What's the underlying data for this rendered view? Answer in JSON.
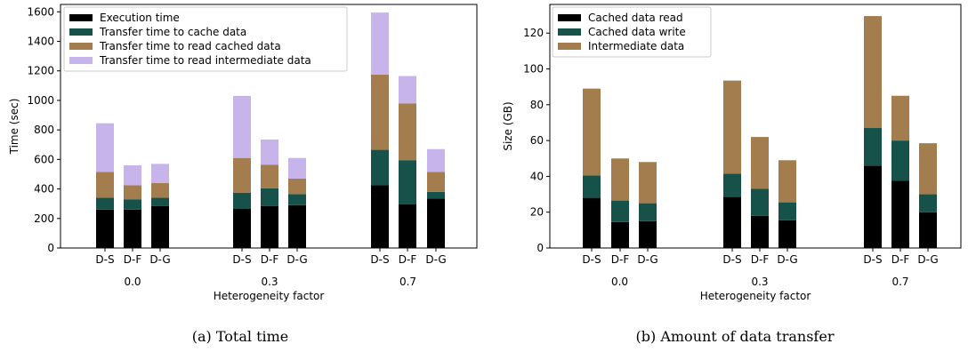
{
  "colors": {
    "execution": "#000000",
    "transfer_cache": "#16524a",
    "transfer_read_cached": "#a47d4f",
    "transfer_read_intermediate": "#c7b4ea",
    "cached_read": "#000000",
    "cached_write": "#16524a",
    "intermediate": "#a47d4f"
  },
  "chart_data": [
    {
      "type": "bar",
      "stacked": true,
      "caption": "(a) Total time",
      "xlabel": "Heterogeneity factor",
      "ylabel": "Time (sec)",
      "ylim": [
        0,
        1650
      ],
      "yticks": [
        0,
        200,
        400,
        600,
        800,
        1000,
        1200,
        1400,
        1600
      ],
      "groups": [
        "0.0",
        "0.3",
        "0.7"
      ],
      "bar_labels": [
        "D-S",
        "D-F",
        "D-G"
      ],
      "legend_position": "top-left",
      "series": [
        {
          "name": "Execution time",
          "color_key": "execution",
          "values": [
            [
              260,
              260,
              285
            ],
            [
              265,
              285,
              290
            ],
            [
              425,
              295,
              335
            ]
          ]
        },
        {
          "name": "Transfer time to cache data",
          "color_key": "transfer_cache",
          "values": [
            [
              80,
              70,
              55
            ],
            [
              110,
              120,
              75
            ],
            [
              240,
              300,
              45
            ]
          ]
        },
        {
          "name": "Transfer time to read cached data",
          "color_key": "transfer_read_cached",
          "values": [
            [
              175,
              95,
              100
            ],
            [
              235,
              160,
              105
            ],
            [
              510,
              385,
              135
            ]
          ]
        },
        {
          "name": "Transfer time to read intermediate data",
          "color_key": "transfer_read_intermediate",
          "values": [
            [
              330,
              135,
              130
            ],
            [
              420,
              170,
              140
            ],
            [
              420,
              185,
              155
            ]
          ]
        }
      ]
    },
    {
      "type": "bar",
      "stacked": true,
      "caption": "(b) Amount of data transfer",
      "xlabel": "Heterogeneity factor",
      "ylabel": "Size (GB)",
      "ylim": [
        0,
        136
      ],
      "yticks": [
        0,
        20,
        40,
        60,
        80,
        100,
        120
      ],
      "groups": [
        "0.0",
        "0.3",
        "0.7"
      ],
      "bar_labels": [
        "D-S",
        "D-F",
        "D-G"
      ],
      "legend_position": "top-left",
      "series": [
        {
          "name": "Cached data read",
          "color_key": "cached_read",
          "values": [
            [
              28,
              14.5,
              15
            ],
            [
              28.5,
              18,
              15.5
            ],
            [
              46,
              37.5,
              20
            ]
          ]
        },
        {
          "name": "Cached data write",
          "color_key": "cached_write",
          "values": [
            [
              12.5,
              12,
              10
            ],
            [
              13,
              15,
              10
            ],
            [
              21,
              22.5,
              10
            ]
          ]
        },
        {
          "name": "Intermediate data",
          "color_key": "intermediate",
          "values": [
            [
              48.5,
              23.5,
              23
            ],
            [
              52,
              29,
              23.5
            ],
            [
              62.5,
              25,
              28.5
            ]
          ]
        }
      ]
    }
  ]
}
